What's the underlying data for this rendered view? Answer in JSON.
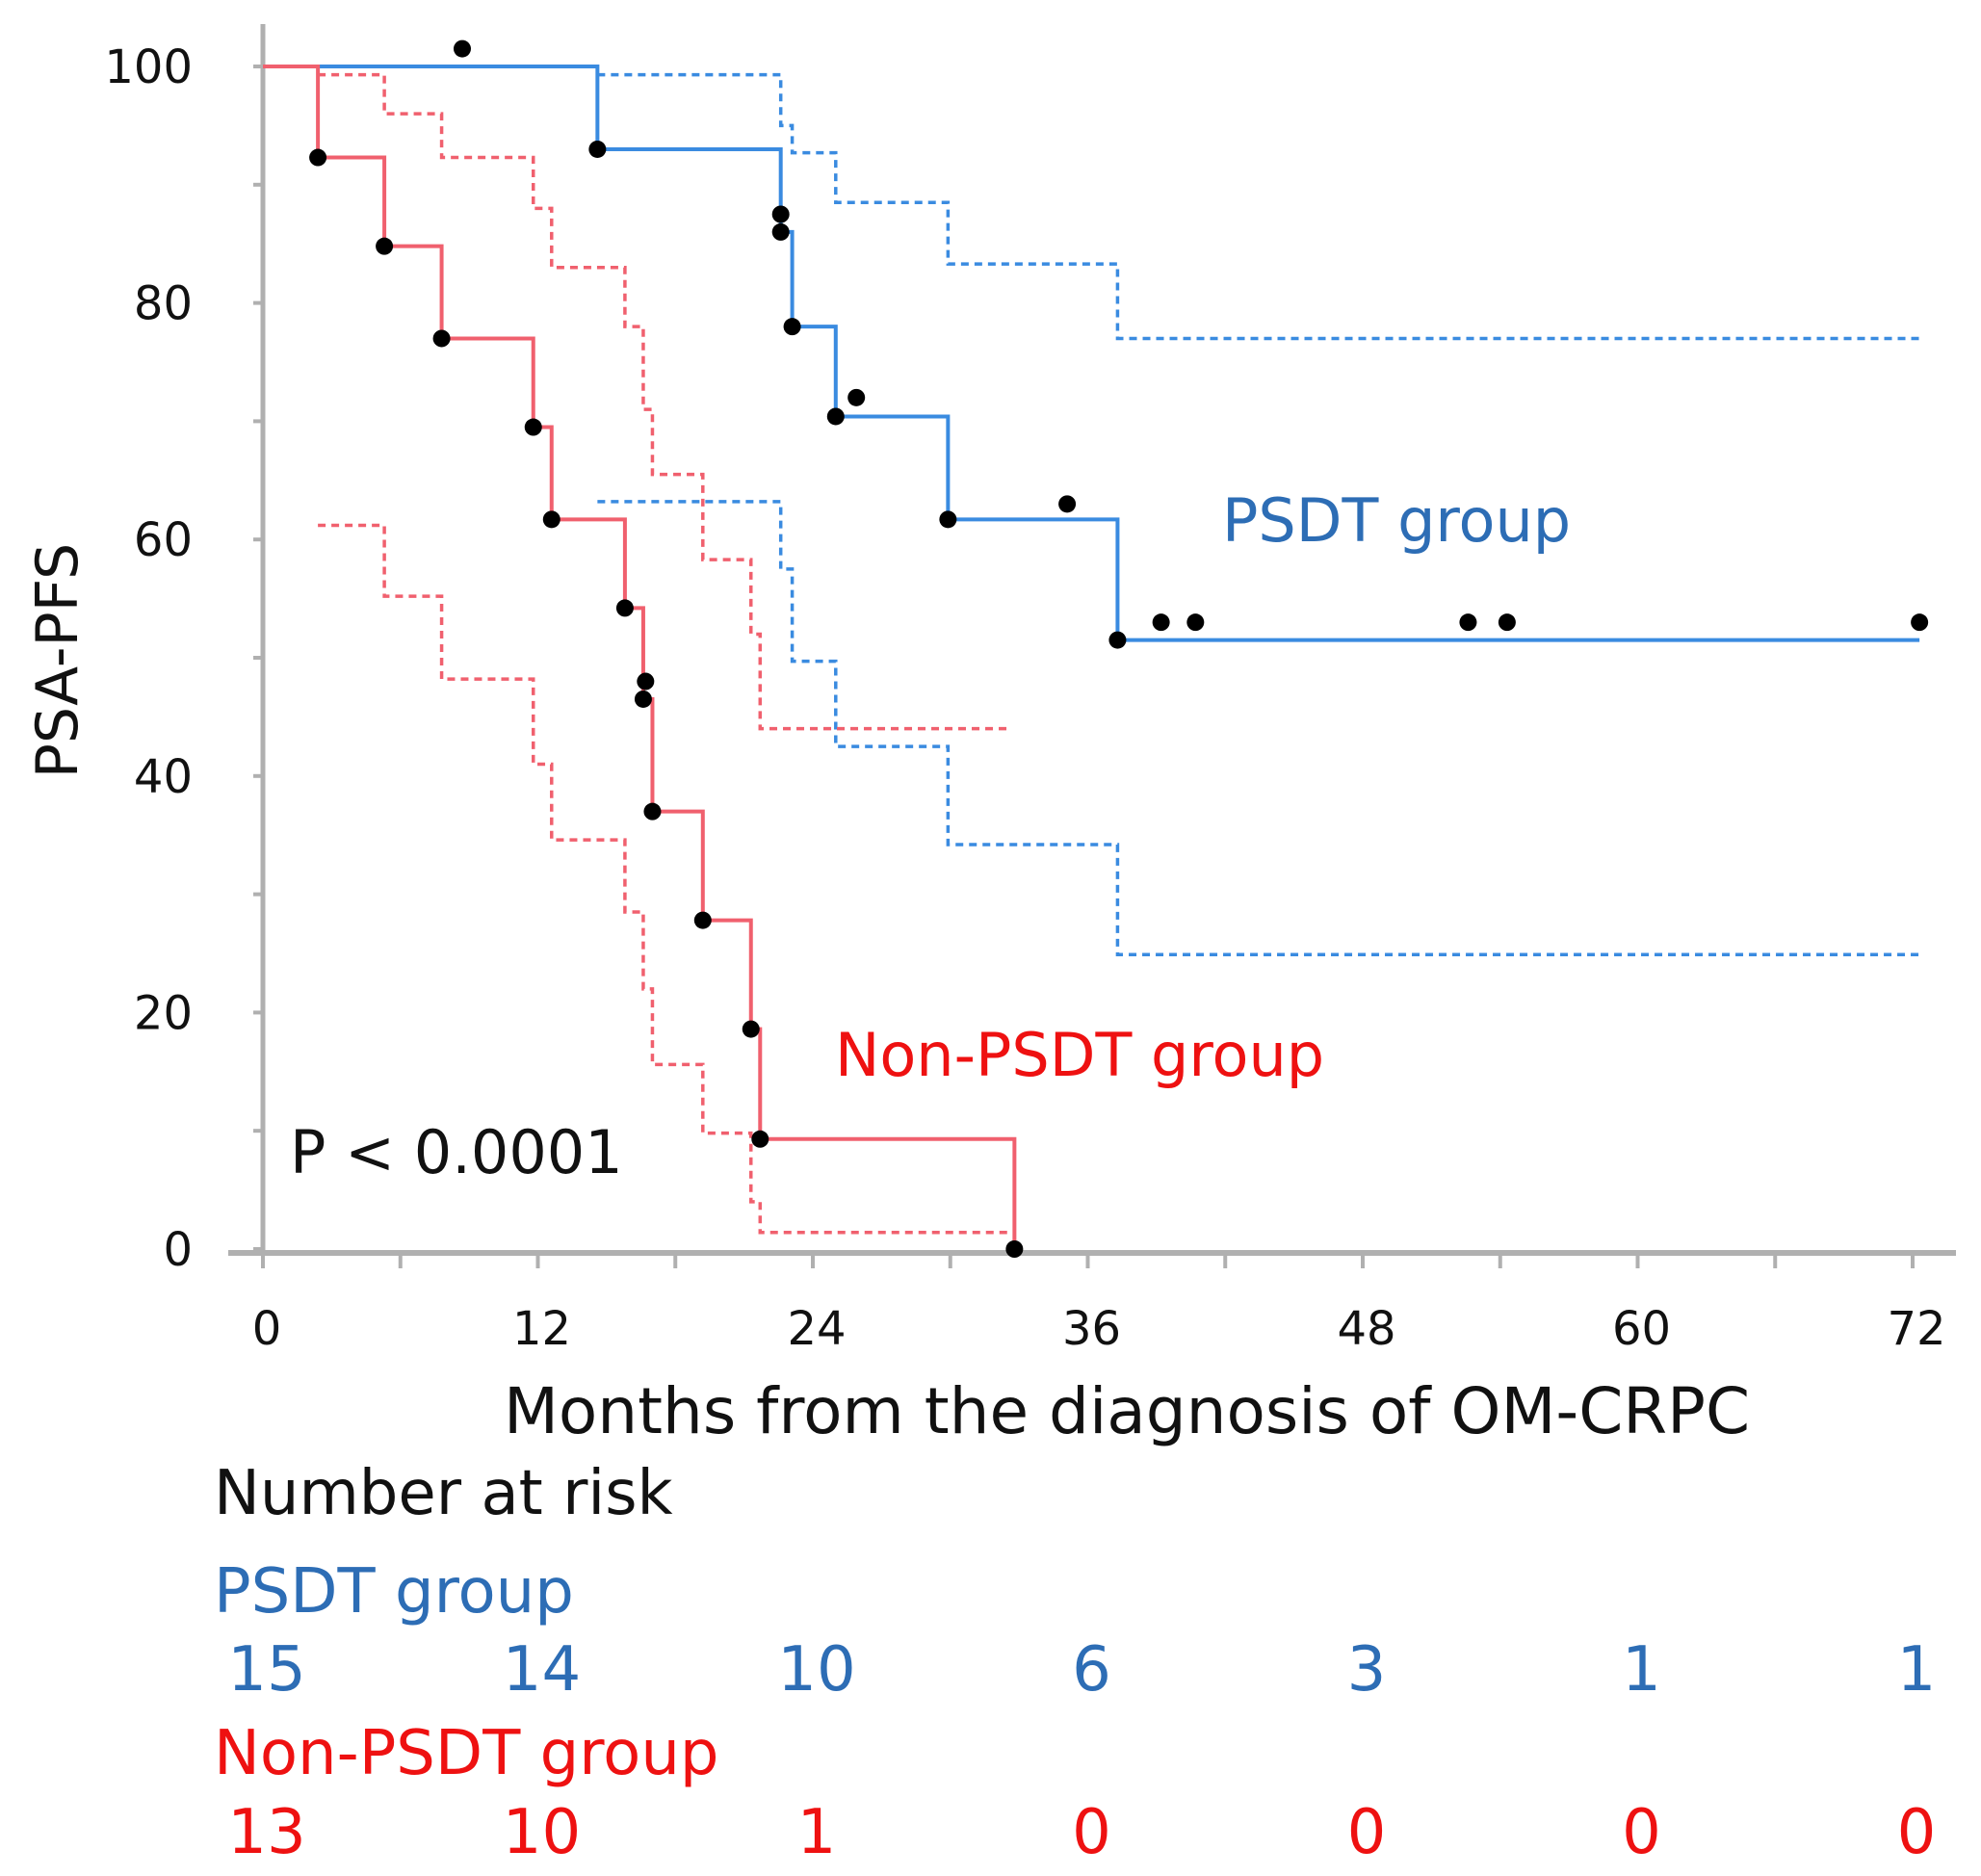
{
  "chart_data": {
    "type": "line",
    "subtype": "kaplan-meier",
    "xlabel": "Months from the diagnosis of OM-CRPC",
    "ylabel": "PSA-PFS",
    "xlim": [
      0,
      72
    ],
    "ylim": [
      0,
      100
    ],
    "xticks": [
      "0",
      "12",
      "24",
      "36",
      "48",
      "60",
      "72"
    ],
    "yticks": [
      "0",
      "20",
      "40",
      "60",
      "80",
      "100"
    ],
    "annotation": "P < 0.0001",
    "colors": {
      "psdt_line": "#3a8be0",
      "psdt_text": "#2d6db5",
      "non_line": "#f0606e",
      "non_text": "#ee1111",
      "axis": "#b0b0b0",
      "dot": "#000000"
    },
    "series": [
      {
        "name": "PSDT group",
        "steps": [
          [
            0,
            100
          ],
          [
            14.6,
            93
          ],
          [
            22.6,
            86
          ],
          [
            23.1,
            78
          ],
          [
            25,
            70.4
          ],
          [
            29.9,
            61.7
          ],
          [
            37.3,
            51.5
          ],
          [
            72.3,
            51.5
          ]
        ],
        "ci_upper": [
          [
            14.6,
            99.3
          ],
          [
            22.6,
            95
          ],
          [
            23.1,
            92.7
          ],
          [
            25,
            88.5
          ],
          [
            29.9,
            83.3
          ],
          [
            37.3,
            77
          ],
          [
            72.3,
            77
          ]
        ],
        "ci_lower": [
          [
            14.6,
            63.2
          ],
          [
            22.6,
            57.5
          ],
          [
            23.1,
            49.7
          ],
          [
            25,
            42.5
          ],
          [
            29.9,
            34.2
          ],
          [
            37.3,
            24.9
          ],
          [
            72.3,
            24.9
          ]
        ],
        "markers": [
          [
            8.7,
            101.5
          ],
          [
            14.6,
            93
          ],
          [
            22.6,
            87.5
          ],
          [
            22.6,
            86
          ],
          [
            23.1,
            78
          ],
          [
            25,
            70.4
          ],
          [
            25.9,
            72
          ],
          [
            29.9,
            61.7
          ],
          [
            35.1,
            63
          ],
          [
            37.3,
            51.5
          ],
          [
            39.2,
            53
          ],
          [
            40.7,
            53
          ],
          [
            52.6,
            53
          ],
          [
            54.3,
            53
          ],
          [
            72.3,
            53
          ]
        ]
      },
      {
        "name": "Non-PSDT group",
        "steps": [
          [
            0,
            100
          ],
          [
            2.4,
            92.3
          ],
          [
            5.3,
            84.8
          ],
          [
            7.8,
            77
          ],
          [
            11.8,
            69.5
          ],
          [
            12.6,
            61.7
          ],
          [
            15.8,
            54.2
          ],
          [
            16.6,
            46.5
          ],
          [
            17,
            37
          ],
          [
            19.2,
            27.8
          ],
          [
            21.3,
            18.6
          ],
          [
            21.7,
            9.3
          ],
          [
            32.8,
            0
          ]
        ],
        "ci_upper": [
          [
            2.4,
            99.3
          ],
          [
            5.3,
            96
          ],
          [
            7.8,
            92.3
          ],
          [
            11.8,
            88
          ],
          [
            12.6,
            83
          ],
          [
            15.8,
            78
          ],
          [
            16.6,
            71
          ],
          [
            17,
            65.5
          ],
          [
            19.2,
            58.3
          ],
          [
            21.3,
            52
          ],
          [
            21.7,
            44
          ],
          [
            32.6,
            44
          ]
        ],
        "ci_lower": [
          [
            2.4,
            61.2
          ],
          [
            5.3,
            55.2
          ],
          [
            7.8,
            48.2
          ],
          [
            11.8,
            41
          ],
          [
            12.6,
            34.6
          ],
          [
            15.8,
            28.5
          ],
          [
            16.6,
            22
          ],
          [
            17,
            15.6
          ],
          [
            19.2,
            9.8
          ],
          [
            21.3,
            4
          ],
          [
            21.7,
            1.4
          ],
          [
            32.8,
            1.4
          ]
        ],
        "markers": [
          [
            2.4,
            92.3
          ],
          [
            5.3,
            84.8
          ],
          [
            7.8,
            77
          ],
          [
            11.8,
            69.5
          ],
          [
            12.6,
            61.7
          ],
          [
            15.8,
            54.2
          ],
          [
            16.7,
            48
          ],
          [
            16.6,
            46.5
          ],
          [
            17,
            37
          ],
          [
            19.2,
            27.8
          ],
          [
            21.3,
            18.6
          ],
          [
            21.7,
            9.3
          ],
          [
            32.8,
            0
          ]
        ]
      }
    ],
    "number_at_risk": {
      "title": "Number at risk",
      "months": [
        0,
        12,
        24,
        36,
        48,
        60,
        72
      ],
      "groups": [
        {
          "name": "PSDT group",
          "counts": [
            "15",
            "14",
            "10",
            "6",
            "3",
            "1",
            "1"
          ]
        },
        {
          "name": "Non-PSDT group",
          "counts": [
            "13",
            "10",
            "1",
            "0",
            "0",
            "0",
            "0"
          ]
        }
      ]
    }
  }
}
